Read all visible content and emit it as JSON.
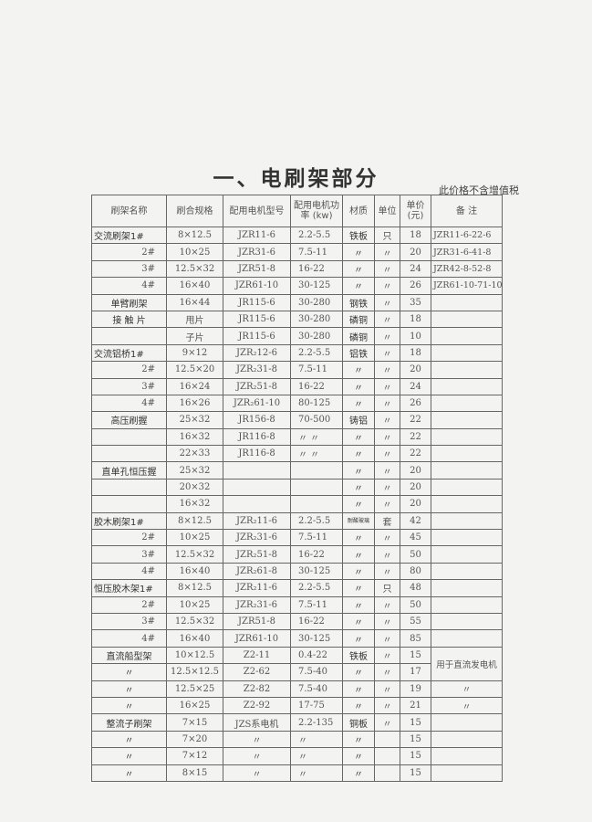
{
  "title": "一、电刷架部分",
  "tax_note": "此价格不含增值税",
  "headers": [
    "刷架名称",
    "刷合规格",
    "配用电机型号",
    "配用电机功率 (kw)",
    "材质",
    "单位",
    "单价(元)",
    "备  注"
  ],
  "rows": [
    [
      "交流刷架1#",
      "8×12.5",
      "JZR11-6",
      "2.2-5.5",
      "铁板",
      "只",
      "18",
      "JZR11-6-22-6"
    ],
    [
      "2#",
      "10×25",
      "JZR31-6",
      "7.5-11",
      "〃",
      "〃",
      "20",
      "JZR31-6-41-8"
    ],
    [
      "3#",
      "12.5×32",
      "JZR51-8",
      "16-22",
      "〃",
      "〃",
      "24",
      "JZR42-8-52-8"
    ],
    [
      "4#",
      "16×40",
      "JZR61-10",
      "30-125",
      "〃",
      "〃",
      "26",
      "JZR61-10-71-10"
    ],
    [
      "单臂刷架",
      "16×44",
      "JR115-6",
      "30-280",
      "钢铁",
      "〃",
      "35",
      ""
    ],
    [
      "接 触 片",
      "甩片",
      "JR115-6",
      "30-280",
      "磷铜",
      "〃",
      "18",
      ""
    ],
    [
      "",
      "子片",
      "JR115-6",
      "30-280",
      "磷铜",
      "〃",
      "10",
      ""
    ],
    [
      "交流铝桥1#",
      "9×12",
      "JZR₂12-6",
      "2.2-5.5",
      "铝铁",
      "〃",
      "18",
      ""
    ],
    [
      "2#",
      "12.5×20",
      "JZR₂31-8",
      "7.5-11",
      "〃",
      "〃",
      "20",
      ""
    ],
    [
      "3#",
      "16×24",
      "JZR₂51-8",
      "16-22",
      "〃",
      "〃",
      "24",
      ""
    ],
    [
      "4#",
      "16×26",
      "JZR₂61-10",
      "80-125",
      "〃",
      "〃",
      "26",
      ""
    ],
    [
      "高压刷握",
      "25×32",
      "JR156-8",
      "70-500",
      "铸铝",
      "〃",
      "22",
      ""
    ],
    [
      "",
      "16×32",
      "JR116-8",
      "〃  〃",
      "〃",
      "〃",
      "22",
      ""
    ],
    [
      "",
      "22×33",
      "JR116-8",
      "〃  〃",
      "〃",
      "〃",
      "22",
      ""
    ],
    [
      "直单孔恒压握",
      "25×32",
      "",
      "",
      "〃",
      "〃",
      "20",
      ""
    ],
    [
      "",
      "20×32",
      "",
      "",
      "〃",
      "〃",
      "20",
      ""
    ],
    [
      "",
      "16×32",
      "",
      "",
      "〃",
      "〃",
      "20",
      ""
    ],
    [
      "胶木刷架1#",
      "8×12.5",
      "JZR₂11-6",
      "2.2-5.5",
      "耐酸玻璃",
      "套",
      "42",
      ""
    ],
    [
      "2#",
      "10×25",
      "JZR₂31-6",
      "7.5-11",
      "〃",
      "〃",
      "45",
      ""
    ],
    [
      "3#",
      "12.5×32",
      "JZR₂51-8",
      "16-22",
      "〃",
      "〃",
      "50",
      ""
    ],
    [
      "4#",
      "16×40",
      "JZR₂61-8",
      "30-125",
      "〃",
      "〃",
      "80",
      ""
    ],
    [
      "恒压胶木架1#",
      "8×12.5",
      "JZR₂11-6",
      "2.2-5.5",
      "〃",
      "只",
      "48",
      ""
    ],
    [
      "2#",
      "10×25",
      "JZR₂31-6",
      "7.5-11",
      "〃",
      "〃",
      "50",
      ""
    ],
    [
      "3#",
      "12.5×32",
      "JZR51-8",
      "16-22",
      "〃",
      "〃",
      "55",
      ""
    ],
    [
      "4#",
      "16×40",
      "JZR61-10",
      "30-125",
      "〃",
      "〃",
      "85",
      ""
    ],
    [
      "直流船型架",
      "10×12.5",
      "Z2-11",
      "0.4-22",
      "铁板",
      "〃",
      "15",
      "用于直流发电机"
    ],
    [
      "〃",
      "12.5×12.5",
      "Z2-62",
      "7.5-40",
      "〃",
      "〃",
      "17",
      null
    ],
    [
      "〃",
      "12.5×25",
      "Z2-82",
      "7.5-40",
      "〃",
      "〃",
      "19",
      "〃"
    ],
    [
      "〃",
      "16×25",
      "Z2-92",
      "17-75",
      "〃",
      "〃",
      "21",
      "〃"
    ],
    [
      "整流子刷架",
      "7×15",
      "JZS系电机",
      "2.2-135",
      "铜板",
      "〃",
      "15",
      ""
    ],
    [
      "〃",
      "7×20",
      "〃",
      "〃",
      "〃",
      "",
      "15",
      ""
    ],
    [
      "〃",
      "7×12",
      "〃",
      "〃",
      "〃",
      "",
      "15",
      ""
    ],
    [
      "〃",
      "8×15",
      "〃",
      "〃",
      "〃",
      "",
      "15",
      ""
    ]
  ]
}
